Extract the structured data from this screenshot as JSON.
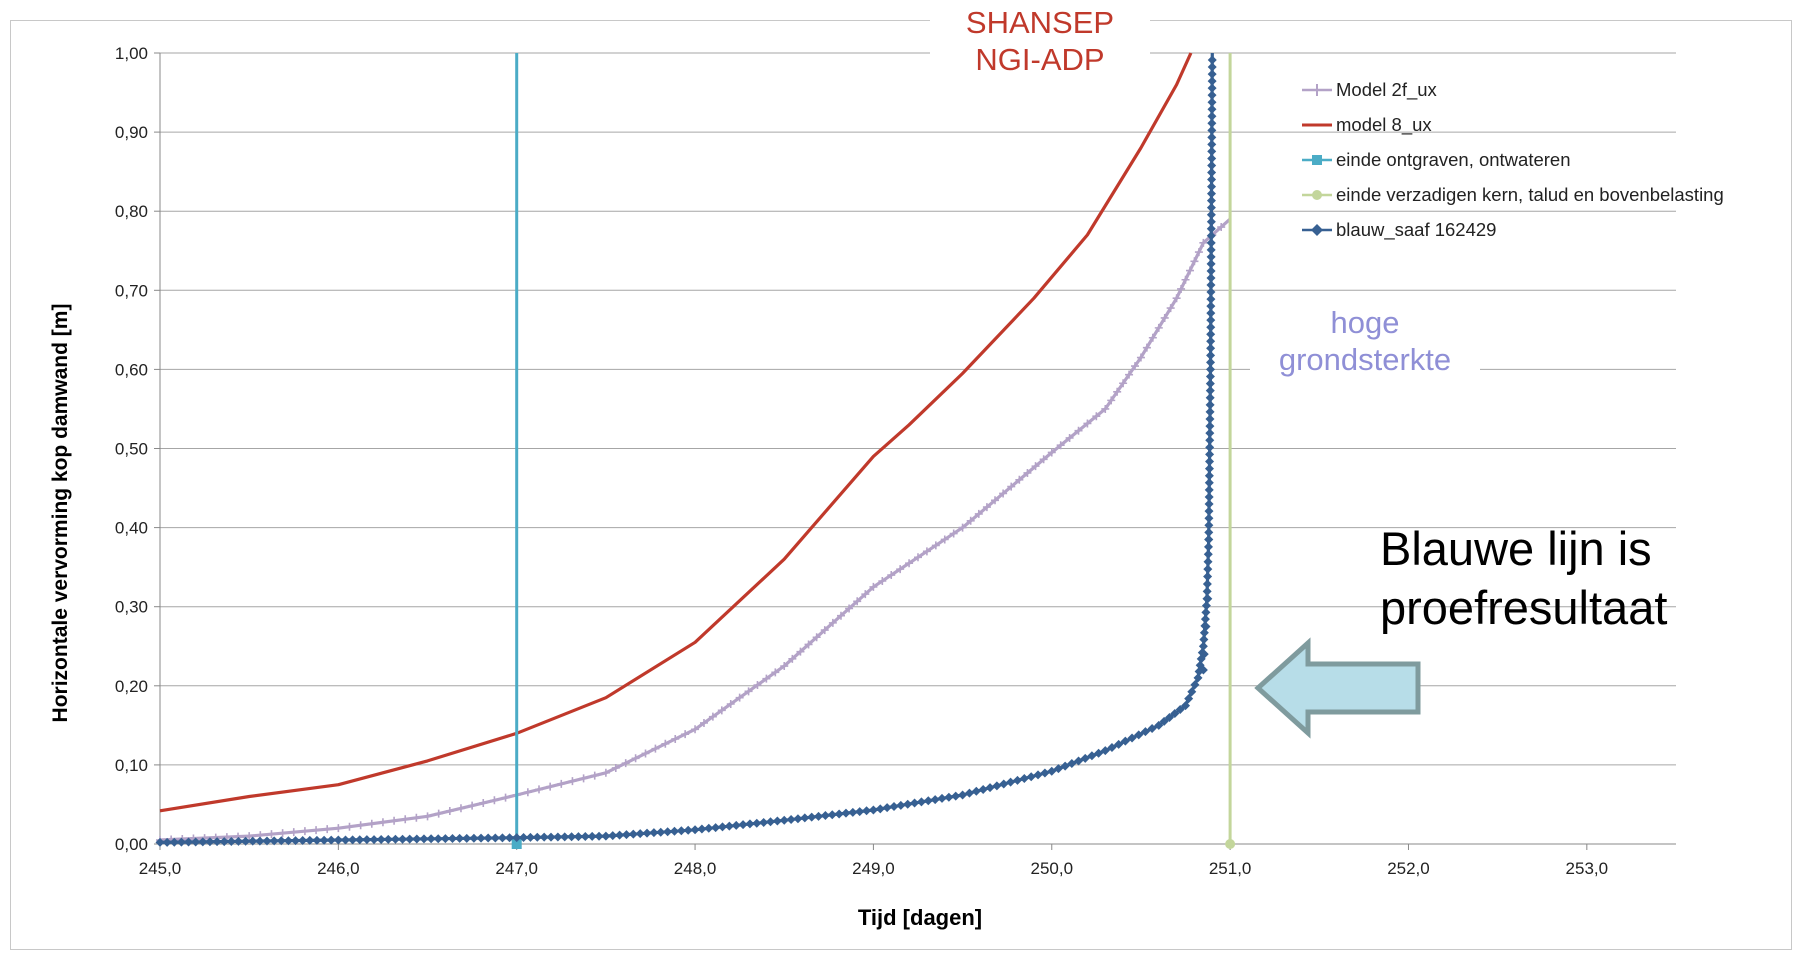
{
  "chart_data": {
    "type": "line",
    "title": "",
    "xlabel": "Tijd [dagen]",
    "ylabel": "Horizontale vervorming kop damwand [m]",
    "xlim": [
      245.0,
      253.5
    ],
    "ylim": [
      0.0,
      1.0
    ],
    "x_ticks": [
      "245,0",
      "246,0",
      "247,0",
      "248,0",
      "249,0",
      "250,0",
      "251,0",
      "252,0",
      "253,0"
    ],
    "y_ticks": [
      "0,00",
      "0,10",
      "0,20",
      "0,30",
      "0,40",
      "0,50",
      "0,60",
      "0,70",
      "0,80",
      "0,90",
      "1,00"
    ],
    "grid": "horizontal",
    "legend_position": "top-right",
    "series": [
      {
        "name": "Model 2f_ux",
        "color": "#b3a2c7",
        "marker": "plus",
        "points": [
          [
            245.0,
            0.005
          ],
          [
            245.5,
            0.01
          ],
          [
            246.0,
            0.02
          ],
          [
            246.5,
            0.035
          ],
          [
            247.0,
            0.062
          ],
          [
            247.5,
            0.09
          ],
          [
            248.0,
            0.145
          ],
          [
            248.5,
            0.225
          ],
          [
            249.0,
            0.325
          ],
          [
            249.5,
            0.4
          ],
          [
            250.0,
            0.495
          ],
          [
            250.3,
            0.55
          ],
          [
            250.5,
            0.615
          ],
          [
            250.7,
            0.69
          ],
          [
            250.85,
            0.76
          ],
          [
            251.0,
            0.79
          ]
        ]
      },
      {
        "name": "model 8_ux",
        "color": "#c0392b",
        "marker": "none",
        "points": [
          [
            245.0,
            0.042
          ],
          [
            245.5,
            0.06
          ],
          [
            246.0,
            0.075
          ],
          [
            246.5,
            0.105
          ],
          [
            247.0,
            0.14
          ],
          [
            247.5,
            0.185
          ],
          [
            248.0,
            0.255
          ],
          [
            248.5,
            0.36
          ],
          [
            249.0,
            0.49
          ],
          [
            249.2,
            0.53
          ],
          [
            249.5,
            0.595
          ],
          [
            249.9,
            0.69
          ],
          [
            250.2,
            0.77
          ],
          [
            250.5,
            0.88
          ],
          [
            250.7,
            0.96
          ],
          [
            250.78,
            1.0
          ]
        ]
      },
      {
        "name": "einde ontgraven, ontwateren",
        "color": "#4bacc6",
        "marker": "square",
        "points": [
          [
            247.0,
            0.0
          ],
          [
            247.0,
            1.0
          ]
        ]
      },
      {
        "name": "einde verzadigen kern, talud en bovenbelasting",
        "color": "#c3d69b",
        "marker": "circle",
        "points": [
          [
            251.0,
            0.0
          ],
          [
            251.0,
            1.0
          ]
        ]
      },
      {
        "name": "blauw_saaf 162429",
        "color": "#376092",
        "marker": "diamond",
        "points": [
          [
            245.0,
            0.002
          ],
          [
            246.0,
            0.005
          ],
          [
            247.0,
            0.008
          ],
          [
            247.5,
            0.01
          ],
          [
            248.0,
            0.018
          ],
          [
            248.5,
            0.03
          ],
          [
            249.0,
            0.043
          ],
          [
            249.5,
            0.062
          ],
          [
            250.0,
            0.092
          ],
          [
            250.3,
            0.118
          ],
          [
            250.6,
            0.15
          ],
          [
            250.75,
            0.175
          ],
          [
            250.82,
            0.21
          ],
          [
            250.85,
            0.25
          ],
          [
            250.87,
            0.31
          ],
          [
            250.88,
            0.385
          ],
          [
            250.89,
            0.6
          ],
          [
            250.9,
            1.0
          ]
        ]
      }
    ],
    "annotations": {
      "shansep": [
        "SHANSEP",
        "NGI-ADP"
      ],
      "hoge": [
        "hoge",
        "grondsterkte"
      ],
      "blauwe": [
        "Blauwe lijn is",
        "proefresultaat"
      ]
    },
    "arrow_color": "#b7dde8"
  }
}
